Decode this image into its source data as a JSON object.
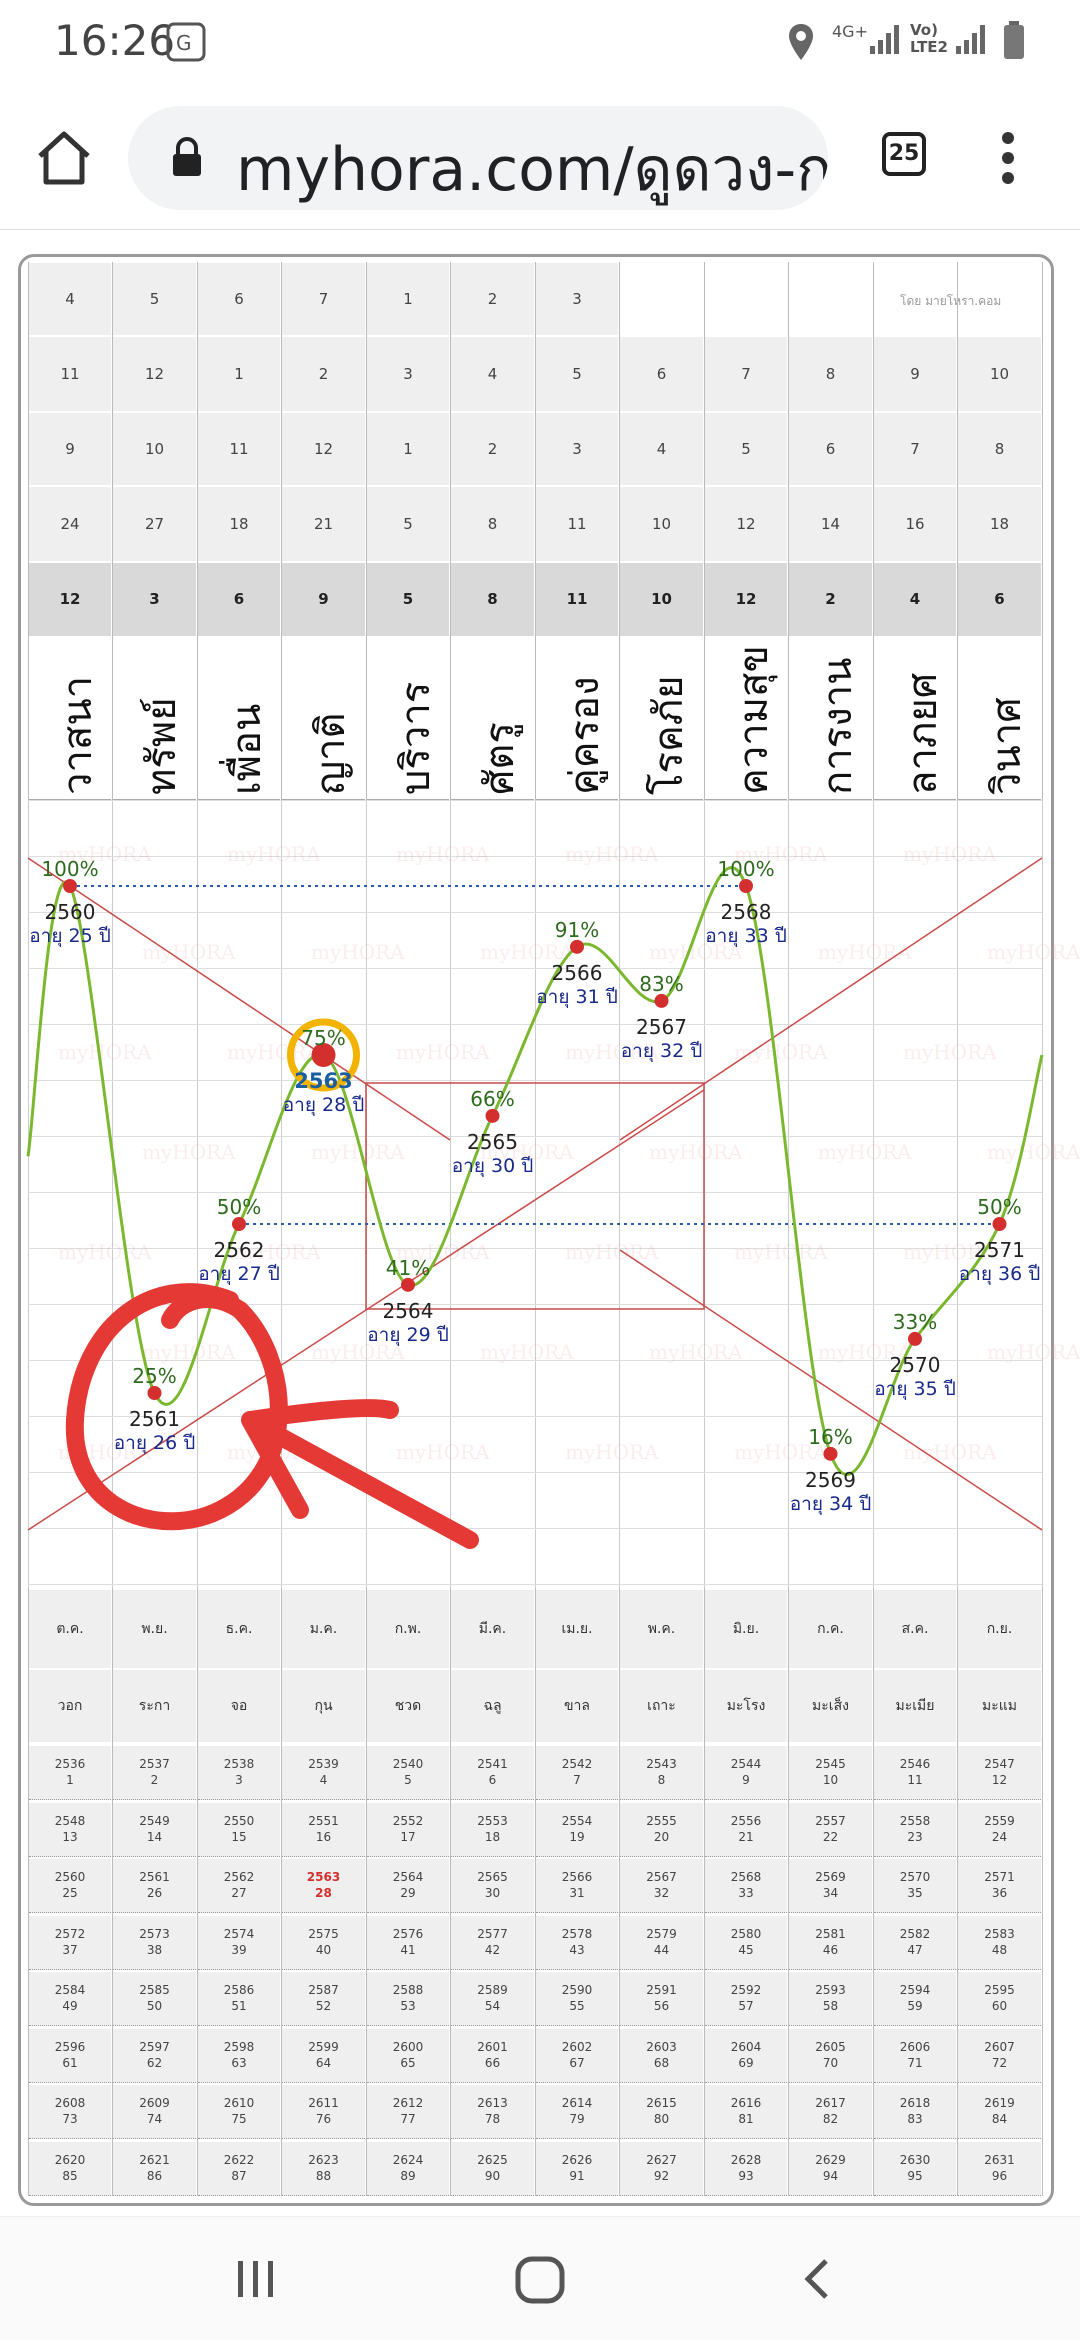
{
  "status_bar": {
    "time": "16:26",
    "network": "4G+",
    "carrier": "Vo) LTE2"
  },
  "browser": {
    "url": "myhora.com/ดูดวง-ก",
    "tab_count": "25"
  },
  "table": {
    "watermark_credit": "โดย มายโหรา.คอม",
    "watermark_bg": "myHORA",
    "rows_top": [
      [
        "4",
        "5",
        "6",
        "7",
        "1",
        "2",
        "3",
        "",
        "",
        "",
        "",
        ""
      ],
      [
        "11",
        "12",
        "1",
        "2",
        "3",
        "4",
        "5",
        "6",
        "7",
        "8",
        "9",
        "10"
      ],
      [
        "9",
        "10",
        "11",
        "12",
        "1",
        "2",
        "3",
        "4",
        "5",
        "6",
        "7",
        "8"
      ],
      [
        "24",
        "27",
        "18",
        "21",
        "5",
        "8",
        "11",
        "10",
        "12",
        "14",
        "16",
        "18"
      ],
      [
        "12",
        "3",
        "6",
        "9",
        "5",
        "8",
        "11",
        "10",
        "12",
        "2",
        "4",
        "6"
      ]
    ],
    "houses": [
      "วาสนา",
      "ทรัพย์",
      "เพื่อน",
      "ญาติ",
      "บริวาร",
      "ศัตรู",
      "คู่ครอง",
      "โรคภัย",
      "ความสุข",
      "การงาน",
      "ลาภยศ",
      "วินาศ"
    ],
    "months": [
      "ต.ค.",
      "พ.ย.",
      "ธ.ค.",
      "ม.ค.",
      "ก.พ.",
      "มี.ค.",
      "เม.ย.",
      "พ.ค.",
      "มิ.ย.",
      "ก.ค.",
      "ส.ค.",
      "ก.ย."
    ],
    "zodiac": [
      "วอก",
      "ระกา",
      "จอ",
      "กุน",
      "ชวด",
      "ฉลู",
      "ขาล",
      "เถาะ",
      "มะโรง",
      "มะเส็ง",
      "มะเมีย",
      "มะแม"
    ],
    "highlight_year": "2563",
    "years": [
      [
        "2536",
        "2537",
        "2538",
        "2539",
        "2540",
        "2541",
        "2542",
        "2543",
        "2544",
        "2545",
        "2546",
        "2547"
      ],
      [
        "2548",
        "2549",
        "2550",
        "2551",
        "2552",
        "2553",
        "2554",
        "2555",
        "2556",
        "2557",
        "2558",
        "2559"
      ],
      [
        "2560",
        "2561",
        "2562",
        "2563",
        "2564",
        "2565",
        "2566",
        "2567",
        "2568",
        "2569",
        "2570",
        "2571"
      ],
      [
        "2572",
        "2573",
        "2574",
        "2575",
        "2576",
        "2577",
        "2578",
        "2579",
        "2580",
        "2581",
        "2582",
        "2583"
      ],
      [
        "2584",
        "2585",
        "2586",
        "2587",
        "2588",
        "2589",
        "2590",
        "2591",
        "2592",
        "2593",
        "2594",
        "2595"
      ],
      [
        "2596",
        "2597",
        "2598",
        "2599",
        "2600",
        "2601",
        "2602",
        "2603",
        "2604",
        "2605",
        "2606",
        "2607"
      ],
      [
        "2608",
        "2609",
        "2610",
        "2611",
        "2612",
        "2613",
        "2614",
        "2615",
        "2616",
        "2617",
        "2618",
        "2619"
      ],
      [
        "2620",
        "2621",
        "2622",
        "2623",
        "2624",
        "2625",
        "2626",
        "2627",
        "2628",
        "2629",
        "2630",
        "2631"
      ]
    ],
    "ages": [
      [
        "1",
        "2",
        "3",
        "4",
        "5",
        "6",
        "7",
        "8",
        "9",
        "10",
        "11",
        "12"
      ],
      [
        "13",
        "14",
        "15",
        "16",
        "17",
        "18",
        "19",
        "20",
        "21",
        "22",
        "23",
        "24"
      ],
      [
        "25",
        "26",
        "27",
        "28",
        "29",
        "30",
        "31",
        "32",
        "33",
        "34",
        "35",
        "36"
      ],
      [
        "37",
        "38",
        "39",
        "40",
        "41",
        "42",
        "43",
        "44",
        "45",
        "46",
        "47",
        "48"
      ],
      [
        "49",
        "50",
        "51",
        "52",
        "53",
        "54",
        "55",
        "56",
        "57",
        "58",
        "59",
        "60"
      ],
      [
        "61",
        "62",
        "63",
        "64",
        "65",
        "66",
        "67",
        "68",
        "69",
        "70",
        "71",
        "72"
      ],
      [
        "73",
        "74",
        "75",
        "76",
        "77",
        "78",
        "79",
        "80",
        "81",
        "82",
        "83",
        "84"
      ],
      [
        "85",
        "86",
        "87",
        "88",
        "89",
        "90",
        "91",
        "92",
        "93",
        "94",
        "95",
        "96"
      ]
    ]
  },
  "chart_data": {
    "type": "line",
    "x": [
      "2560",
      "2561",
      "2562",
      "2563",
      "2564",
      "2565",
      "2566",
      "2567",
      "2568",
      "2569",
      "2570",
      "2571"
    ],
    "y": [
      100,
      25,
      50,
      75,
      41,
      66,
      91,
      83,
      100,
      16,
      33,
      50
    ],
    "point_labels": [
      "100%",
      "25%",
      "50%",
      "75%",
      "41%",
      "66%",
      "91%",
      "83%",
      "100%",
      "16%",
      "33%",
      "50%"
    ],
    "age_labels": [
      "อายุ 25 ปี",
      "อายุ 26 ปี",
      "อายุ 27 ปี",
      "อายุ 28 ปี",
      "อายุ 29 ปี",
      "อายุ 30 ปี",
      "อายุ 31 ปี",
      "อายุ 32 ปี",
      "อายุ 33 ปี",
      "อายุ 34 ปี",
      "อายุ 35 ปี",
      "อายุ 36 ปี"
    ],
    "current_index": 3,
    "ylim": [
      0,
      100
    ],
    "colors": {
      "line": "#7cb82f",
      "point": "#d32f2f",
      "highlight_ring": "#f2b400",
      "guide": "#c94a4a",
      "dotted": "#2a5db0",
      "year": "#222",
      "age": "#1a2a8a",
      "current_year": "#1b5fa0",
      "pct": "#2e6b1e",
      "annotation": "#e53935"
    }
  }
}
